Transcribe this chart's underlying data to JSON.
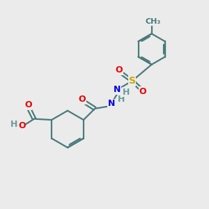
{
  "bg_color": "#ebebeb",
  "atom_colors": {
    "C": "#4a7a7a",
    "H": "#6a9a9a",
    "N": "#0000ee",
    "O": "#ee0000",
    "S": "#ccaa00"
  },
  "bond_color": "#4a7a7a",
  "figsize": [
    3.0,
    3.0
  ],
  "dpi": 100,
  "ring_r": 0.9,
  "benz_r": 0.75,
  "lw": 1.6
}
